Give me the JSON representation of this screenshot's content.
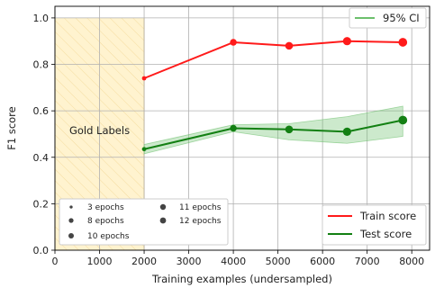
{
  "chart_data": {
    "type": "line",
    "xlabel": "Training examples (undersampled)",
    "ylabel": "F1 score",
    "xlim": [
      0,
      8400
    ],
    "ylim": [
      0,
      1.05
    ],
    "xticks": [
      0,
      1000,
      2000,
      3000,
      4000,
      5000,
      6000,
      7000,
      8000
    ],
    "yticks": [
      0.0,
      0.2,
      0.4,
      0.6,
      0.8,
      1.0
    ],
    "xtick_labels": [
      "0",
      "1000",
      "2000",
      "3000",
      "4000",
      "5000",
      "6000",
      "7000",
      "8000"
    ],
    "ytick_labels": [
      "0.0",
      "0.2",
      "0.4",
      "0.6",
      "0.8",
      "1.0"
    ],
    "grid": true,
    "region": {
      "label": "Gold Labels",
      "x": [
        0,
        2000
      ],
      "color": "#fff3cf"
    },
    "series": [
      {
        "name": "Train score",
        "color": "#ff1a1a",
        "x": [
          2000,
          4000,
          5250,
          6550,
          7800
        ],
        "y": [
          0.74,
          0.895,
          0.88,
          0.9,
          0.895
        ],
        "marker_epochs": [
          3,
          8,
          10,
          11,
          12
        ]
      },
      {
        "name": "Test score",
        "color": "#138013",
        "x": [
          2000,
          4000,
          5250,
          6550,
          7800
        ],
        "y": [
          0.435,
          0.525,
          0.52,
          0.51,
          0.56
        ],
        "marker_epochs": [
          3,
          8,
          10,
          11,
          12
        ],
        "ci_lower": [
          0.415,
          0.51,
          0.475,
          0.46,
          0.49
        ],
        "ci_upper": [
          0.455,
          0.54,
          0.545,
          0.575,
          0.62
        ]
      }
    ],
    "ci_legend": {
      "label": "95% CI",
      "color": "#6cbf6c",
      "position": "top-right"
    },
    "score_legend": {
      "position": "bottom-right"
    },
    "epoch_legend": {
      "position": "bottom-left",
      "items": [
        {
          "label": "3 epochs",
          "epochs": 3
        },
        {
          "label": "8 epochs",
          "epochs": 8
        },
        {
          "label": "10 epochs",
          "epochs": 10
        },
        {
          "label": "11 epochs",
          "epochs": 11
        },
        {
          "label": "12 epochs",
          "epochs": 12
        }
      ]
    }
  }
}
